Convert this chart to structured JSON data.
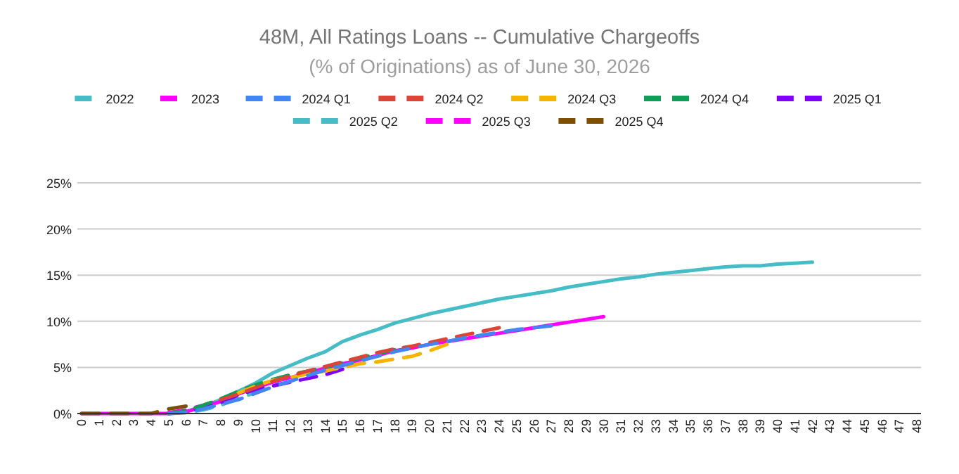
{
  "chart_data": {
    "type": "line",
    "title": "48M, All Ratings Loans -- Cumulative Chargeoffs",
    "subtitle": "(% of Originations) as of June 30, 2026",
    "categories": [
      "0",
      "1",
      "2",
      "3",
      "4",
      "5",
      "6",
      "7",
      "8",
      "9",
      "10",
      "11",
      "12",
      "13",
      "14",
      "15",
      "16",
      "17",
      "18",
      "19",
      "20",
      "21",
      "22",
      "23",
      "24",
      "25",
      "26",
      "27",
      "28",
      "29",
      "30",
      "31",
      "32",
      "33",
      "34",
      "35",
      "36",
      "37",
      "38",
      "39",
      "40",
      "41",
      "42",
      "43",
      "44",
      "45",
      "46",
      "47",
      "48"
    ],
    "ylim": [
      0,
      25
    ],
    "yticks": [
      {
        "value": 0,
        "label": "0%"
      },
      {
        "value": 5,
        "label": "5%"
      },
      {
        "value": 10,
        "label": "10%"
      },
      {
        "value": 15,
        "label": "15%"
      },
      {
        "value": 20,
        "label": "20%"
      },
      {
        "value": 25,
        "label": "25%"
      }
    ],
    "grid": "y",
    "legend": "top",
    "marker": "none",
    "series": [
      {
        "name": "2022",
        "color": "#46bdc6",
        "line_style": "solid",
        "values": [
          null,
          null,
          null,
          null,
          null,
          0,
          0.2,
          0.8,
          1.5,
          2.4,
          3.3,
          4.4,
          5.2,
          6.0,
          6.7,
          7.8,
          8.5,
          9.1,
          9.8,
          10.3,
          10.8,
          11.2,
          11.6,
          12.0,
          12.4,
          12.7,
          13.0,
          13.3,
          13.7,
          14.0,
          14.3,
          14.6,
          14.8,
          15.1,
          15.3,
          15.5,
          15.7,
          15.9,
          16.0,
          16.0,
          16.2,
          16.3,
          16.4,
          null,
          null,
          null,
          null,
          null,
          null
        ]
      },
      {
        "name": "2023",
        "color": "#ff00ff",
        "line_style": "solid",
        "values": [
          0,
          0,
          0,
          0,
          0,
          0,
          0.2,
          0.7,
          1.3,
          2.1,
          2.8,
          3.4,
          3.9,
          4.4,
          4.9,
          5.4,
          5.8,
          6.3,
          6.8,
          7.1,
          7.5,
          7.8,
          8.1,
          8.4,
          8.7,
          9.0,
          9.3,
          9.6,
          9.9,
          10.2,
          10.5,
          null,
          null,
          null,
          null,
          null,
          null,
          null,
          null,
          null,
          null,
          null,
          null,
          null,
          null,
          null,
          null,
          null,
          null
        ]
      },
      {
        "name": "2024 Q1",
        "color": "#4285f4",
        "line_style": "dashed",
        "values": [
          null,
          null,
          null,
          null,
          null,
          0,
          0.1,
          0.5,
          1.0,
          1.5,
          2.2,
          2.9,
          3.5,
          4.1,
          4.7,
          5.2,
          5.7,
          6.2,
          6.7,
          7.1,
          7.5,
          7.8,
          8.2,
          8.5,
          8.8,
          9.1,
          9.3,
          9.5,
          null,
          null,
          null,
          null,
          null,
          null,
          null,
          null,
          null,
          null,
          null,
          null,
          null,
          null,
          null,
          null,
          null,
          null,
          null,
          null,
          null
        ]
      },
      {
        "name": "2024 Q2",
        "color": "#db4437",
        "line_style": "dashed",
        "values": [
          null,
          null,
          null,
          null,
          null,
          null,
          null,
          null,
          1.5,
          2.1,
          2.8,
          3.5,
          4.1,
          4.6,
          5.1,
          5.6,
          6.1,
          6.6,
          7.0,
          7.3,
          7.7,
          8.1,
          8.5,
          8.9,
          9.3,
          null,
          null,
          null,
          null,
          null,
          null,
          null,
          null,
          null,
          null,
          null,
          null,
          null,
          null,
          null,
          null,
          null,
          null,
          null,
          null,
          null,
          null,
          null,
          null
        ]
      },
      {
        "name": "2024 Q3",
        "color": "#f4b400",
        "line_style": "dashed",
        "values": [
          null,
          null,
          null,
          null,
          null,
          null,
          null,
          null,
          null,
          2.2,
          3.0,
          3.6,
          3.9,
          4.3,
          4.6,
          5.0,
          5.4,
          5.6,
          5.9,
          6.2,
          6.8,
          7.5,
          null,
          null,
          null,
          null,
          null,
          null,
          null,
          null,
          null,
          null,
          null,
          null,
          null,
          null,
          null,
          null,
          null,
          null,
          null,
          null,
          null,
          null,
          null,
          null,
          null,
          null,
          null
        ]
      },
      {
        "name": "2024 Q4",
        "color": "#0f9d58",
        "line_style": "dashed",
        "values": [
          null,
          null,
          null,
          null,
          null,
          0,
          0.3,
          0.9,
          1.6,
          2.4,
          3.1,
          3.7,
          4.2,
          4.6,
          5.0,
          5.5,
          6.0,
          6.5,
          6.9,
          null,
          null,
          null,
          null,
          null,
          null,
          null,
          null,
          null,
          null,
          null,
          null,
          null,
          null,
          null,
          null,
          null,
          null,
          null,
          null,
          null,
          null,
          null,
          null,
          null,
          null,
          null,
          null,
          null,
          null
        ]
      },
      {
        "name": "2025 Q1",
        "color": "#8000ff",
        "line_style": "dashed",
        "values": [
          null,
          null,
          null,
          null,
          null,
          0,
          0.2,
          0.7,
          1.2,
          2.0,
          2.6,
          3.0,
          3.4,
          3.8,
          4.2,
          4.8,
          null,
          null,
          null,
          null,
          null,
          null,
          null,
          null,
          null,
          null,
          null,
          null,
          null,
          null,
          null,
          null,
          null,
          null,
          null,
          null,
          null,
          null,
          null,
          null,
          null,
          null,
          null,
          null,
          null,
          null,
          null,
          null,
          null
        ]
      },
      {
        "name": "2025 Q2",
        "color": "#46bdc6",
        "line_style": "dashed",
        "values": [
          null,
          null,
          null,
          null,
          null,
          0,
          0.1,
          0.4,
          0.9,
          1.6,
          2.3,
          3.0,
          3.5,
          null,
          null,
          null,
          null,
          null,
          null,
          null,
          null,
          null,
          null,
          null,
          null,
          null,
          null,
          null,
          null,
          null,
          null,
          null,
          null,
          null,
          null,
          null,
          null,
          null,
          null,
          null,
          null,
          null,
          null,
          null,
          null,
          null,
          null,
          null,
          null
        ]
      },
      {
        "name": "2025 Q3",
        "color": "#ff00ff",
        "line_style": "dashed",
        "values": [
          null,
          null,
          null,
          null,
          null,
          0.1,
          0.4,
          0.9,
          1.5,
          2.2,
          null,
          null,
          null,
          null,
          null,
          null,
          null,
          null,
          null,
          null,
          null,
          null,
          null,
          null,
          null,
          null,
          null,
          null,
          null,
          null,
          null,
          null,
          null,
          null,
          null,
          null,
          null,
          null,
          null,
          null,
          null,
          null,
          null,
          null,
          null,
          null,
          null,
          null,
          null
        ]
      },
      {
        "name": "2025 Q4",
        "color": "#7f4f00",
        "line_style": "dashed",
        "values": [
          0,
          0,
          0,
          0,
          0,
          0.5,
          0.8,
          null,
          null,
          null,
          null,
          null,
          null,
          null,
          null,
          null,
          null,
          null,
          null,
          null,
          null,
          null,
          null,
          null,
          null,
          null,
          null,
          null,
          null,
          null,
          null,
          null,
          null,
          null,
          null,
          null,
          null,
          null,
          null,
          null,
          null,
          null,
          null,
          null,
          null,
          null,
          null,
          null,
          null
        ]
      }
    ]
  }
}
